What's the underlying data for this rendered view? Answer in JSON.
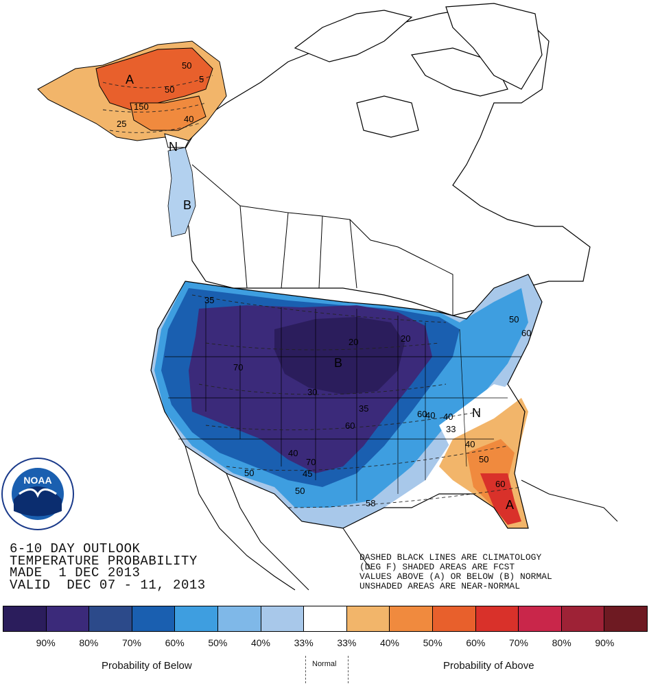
{
  "map": {
    "region_labels": [
      {
        "id": "alaska-above",
        "text": "A"
      },
      {
        "id": "pac-nw-normal",
        "text": "N"
      },
      {
        "id": "pac-nw-below",
        "text": "B"
      },
      {
        "id": "plains-below",
        "text": "B"
      },
      {
        "id": "southeast-normal",
        "text": "N"
      },
      {
        "id": "florida-above",
        "text": "A"
      }
    ],
    "contour_labels": [
      "50",
      "5",
      "50",
      "40",
      "150",
      "25",
      "35",
      "70",
      "20",
      "20",
      "30",
      "60",
      "35",
      "60",
      "40",
      "33",
      "40",
      "50",
      "45",
      "50",
      "50",
      "58",
      "70",
      "60",
      "40",
      "40",
      "50",
      "60"
    ],
    "colors": {
      "below_90": "#2b1d5c",
      "below_80": "#3b2a7a",
      "below_70": "#23409a",
      "below_60": "#1a5fb0",
      "below_50": "#3e9ee0",
      "below_40": "#7fb8e8",
      "below_33": "#b3d1ef",
      "normal": "#ffffff",
      "above_33": "#f2b56a",
      "above_40": "#f08a3e",
      "above_50": "#e8602c",
      "above_60": "#d9312a",
      "above_70": "#c32a2f",
      "above_80": "#9e2236",
      "above_90": "#6e1a22"
    },
    "logo_text": "NOAA"
  },
  "title": {
    "line1": "6-10 DAY OUTLOOK",
    "line2": "TEMPERATURE PROBABILITY",
    "line3": "MADE  1 DEC 2013",
    "line4": "VALID  DEC 07 - 11, 2013"
  },
  "notes": {
    "line1": "DASHED BLACK LINES ARE CLIMATOLOGY",
    "line2": "(DEG F) SHADED AREAS ARE FCST",
    "line3": "VALUES ABOVE (A) OR BELOW (B) NORMAL",
    "line4": "UNSHADED AREAS ARE NEAR-NORMAL"
  },
  "legend": {
    "swatch_colors": [
      "#2b1d5c",
      "#3b2a7a",
      "#2c4a8a",
      "#1a5fb0",
      "#3e9ee0",
      "#7fb8e8",
      "#a8c8ea",
      "#ffffff",
      "#f2b56a",
      "#f08a3e",
      "#e8602c",
      "#d9312a",
      "#c9264a",
      "#9e2236",
      "#6e1a22"
    ],
    "percentages": [
      "90%",
      "80%",
      "70%",
      "60%",
      "50%",
      "40%",
      "33%",
      "33%",
      "40%",
      "50%",
      "60%",
      "70%",
      "80%",
      "90%"
    ],
    "below_label": "Probability of Below",
    "normal_label": "Normal",
    "above_label": "Probability of Above"
  }
}
